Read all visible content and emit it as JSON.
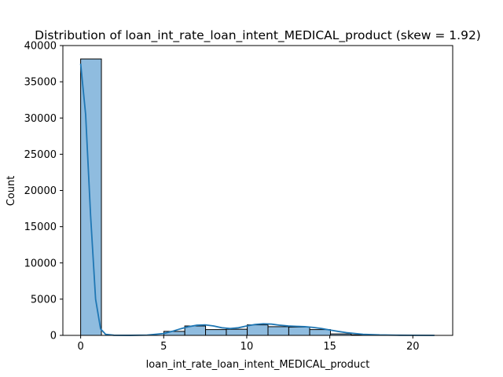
{
  "chart_data": {
    "type": "bar",
    "title": "Distribution of loan_int_rate_loan_intent_MEDICAL_product (skew = 1.92)",
    "xlabel": "loan_int_rate_loan_intent_MEDICAL_product",
    "ylabel": "Count",
    "xlim": [
      -1.07,
      22.4
    ],
    "ylim": [
      0,
      40000
    ],
    "x_ticks": [
      0,
      5,
      10,
      15,
      20
    ],
    "y_ticks": [
      0,
      5000,
      10000,
      15000,
      20000,
      25000,
      30000,
      35000,
      40000
    ],
    "grid": false,
    "bar_color": "#8fbcdf",
    "edge_color": "#000000",
    "kde_color": "#1f77b4",
    "bins": [
      {
        "start": 0.0,
        "end": 1.25,
        "count": 38150
      },
      {
        "start": 1.25,
        "end": 2.51,
        "count": 0
      },
      {
        "start": 2.51,
        "end": 3.76,
        "count": 0
      },
      {
        "start": 3.76,
        "end": 5.01,
        "count": 0
      },
      {
        "start": 5.01,
        "end": 6.27,
        "count": 550
      },
      {
        "start": 6.27,
        "end": 7.52,
        "count": 1300
      },
      {
        "start": 7.52,
        "end": 8.77,
        "count": 800
      },
      {
        "start": 8.77,
        "end": 10.03,
        "count": 850
      },
      {
        "start": 10.03,
        "end": 11.28,
        "count": 1450
      },
      {
        "start": 11.28,
        "end": 12.53,
        "count": 1200
      },
      {
        "start": 12.53,
        "end": 13.79,
        "count": 1150
      },
      {
        "start": 13.79,
        "end": 15.04,
        "count": 800
      },
      {
        "start": 15.04,
        "end": 16.29,
        "count": 200
      },
      {
        "start": 16.29,
        "end": 17.55,
        "count": 80
      },
      {
        "start": 17.55,
        "end": 18.8,
        "count": 40
      },
      {
        "start": 18.8,
        "end": 20.05,
        "count": 15
      },
      {
        "start": 20.05,
        "end": 21.3,
        "count": 5
      }
    ],
    "kde": {
      "x": [
        0,
        0.3,
        0.6,
        0.9,
        1.2,
        1.5,
        2.0,
        3.0,
        4.0,
        5.0,
        5.5,
        6.0,
        6.5,
        7.0,
        7.5,
        8.0,
        8.5,
        9.0,
        9.5,
        10.0,
        10.5,
        11.0,
        11.5,
        12.0,
        12.5,
        13.0,
        13.5,
        14.0,
        14.5,
        15.0,
        15.5,
        16.0,
        17.0,
        18.0,
        19.0,
        20.0,
        21.3
      ],
      "y": [
        37500,
        30500,
        16500,
        5000,
        900,
        150,
        20,
        5,
        40,
        250,
        550,
        900,
        1200,
        1400,
        1450,
        1300,
        1050,
        950,
        1050,
        1300,
        1500,
        1600,
        1550,
        1400,
        1300,
        1250,
        1200,
        1100,
        950,
        750,
        550,
        380,
        150,
        60,
        25,
        10,
        3
      ]
    }
  }
}
